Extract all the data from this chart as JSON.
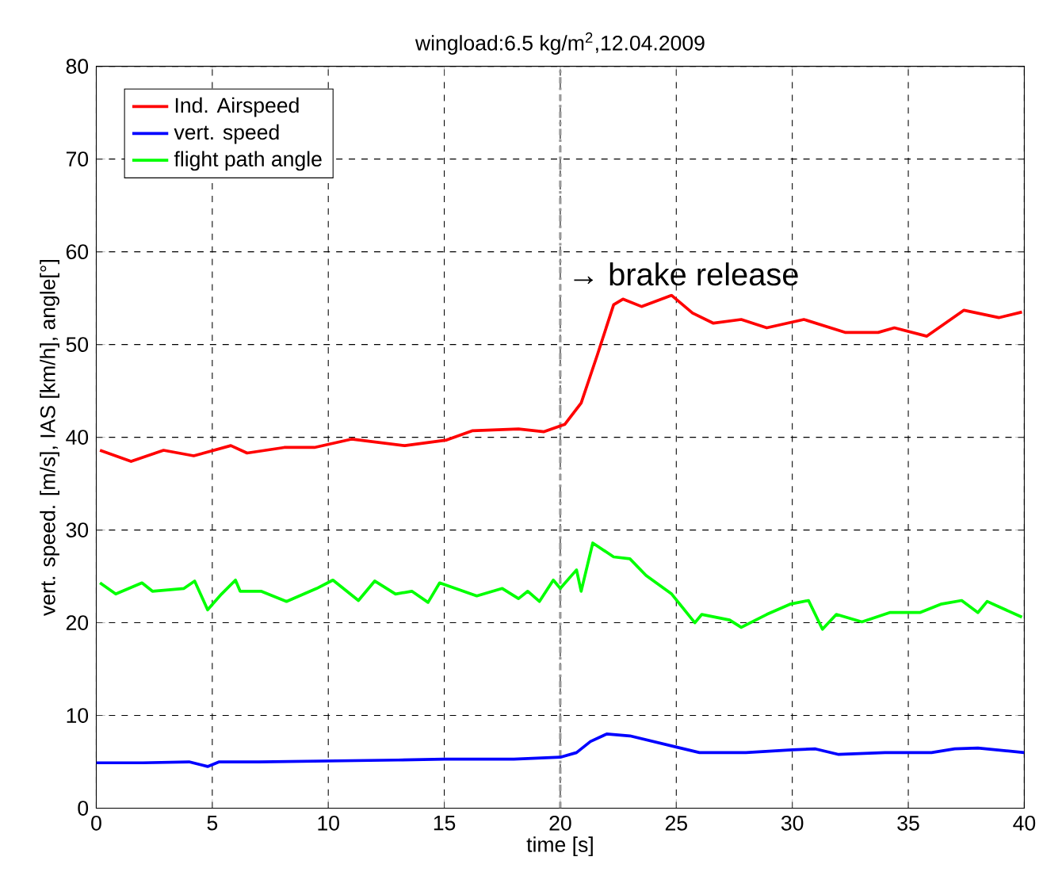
{
  "chart_data": {
    "type": "line",
    "title": "wingload:6.5 kg/m$^{2}$,12.04.2009",
    "xlabel": "time [s]",
    "ylabel": "vert. speed. [m/s], IAS [km/h], angle[°]",
    "xlim": [
      0,
      40
    ],
    "ylim": [
      0,
      80
    ],
    "xticks": [
      0,
      5,
      10,
      15,
      20,
      25,
      30,
      35,
      40
    ],
    "yticks": [
      0,
      10,
      20,
      30,
      40,
      50,
      60,
      70,
      80
    ],
    "grid": true,
    "legend": "top left",
    "marker": "none",
    "line_style": "solid",
    "ref_lines": [
      {
        "axis": "x",
        "value": 20,
        "label": "→ brake release",
        "color": "#999999",
        "line_style": "dashed"
      }
    ],
    "series": [
      {
        "name": "Ind. Airspeed",
        "color": "#ff0000",
        "x": [
          0.16,
          1.5,
          2.9,
          4.2,
          5.8,
          6.5,
          8.1,
          9.4,
          11.0,
          13.3,
          15.1,
          16.2,
          18.2,
          19.3,
          20.2,
          20.9,
          21.6,
          22.3,
          22.7,
          23.5,
          24.8,
          25.7,
          26.6,
          27.8,
          28.9,
          30.5,
          32.3,
          33.7,
          34.4,
          35.8,
          37.4,
          38.9,
          39.9
        ],
        "values": [
          38.6,
          37.4,
          38.6,
          38.0,
          39.1,
          38.3,
          38.9,
          38.9,
          39.8,
          39.1,
          39.7,
          40.7,
          40.9,
          40.6,
          41.4,
          43.7,
          48.9,
          54.3,
          54.9,
          54.1,
          55.3,
          53.4,
          52.3,
          52.7,
          51.8,
          52.7,
          51.3,
          51.3,
          51.8,
          50.9,
          53.7,
          52.9,
          53.5
        ]
      },
      {
        "name": "vert. speed",
        "color": "#0000ff",
        "x": [
          0,
          2,
          4,
          4.8,
          5.3,
          7,
          10,
          13,
          15,
          18,
          20,
          20.7,
          21.3,
          22,
          23,
          24,
          25,
          26,
          28,
          30,
          31,
          32,
          34,
          36,
          37,
          38,
          40
        ],
        "values": [
          4.9,
          4.9,
          5.0,
          4.5,
          5.0,
          5.0,
          5.1,
          5.2,
          5.3,
          5.3,
          5.5,
          6.0,
          7.2,
          8.0,
          7.8,
          7.2,
          6.6,
          6.0,
          6.0,
          6.3,
          6.4,
          5.8,
          6.0,
          6.0,
          6.4,
          6.5,
          6.0
        ]
      },
      {
        "name": "flight path angle",
        "color": "#00ff00",
        "x": [
          0.16,
          0.84,
          1.97,
          2.42,
          3.78,
          4.24,
          4.8,
          5.4,
          6.0,
          6.2,
          7.1,
          8.2,
          9.5,
          10.2,
          11.3,
          12.0,
          12.9,
          13.6,
          14.3,
          14.8,
          16.4,
          17.5,
          18.2,
          18.6,
          19.1,
          19.7,
          20.0,
          20.7,
          20.9,
          21.4,
          22.3,
          23.0,
          23.7,
          24.8,
          25.8,
          26.1,
          27.3,
          27.8,
          28.9,
          29.9,
          30.7,
          31.3,
          31.9,
          33.0,
          34.2,
          35.5,
          36.4,
          37.3,
          38.0,
          38.4,
          39.9
        ],
        "values": [
          24.3,
          23.1,
          24.3,
          23.4,
          23.7,
          24.5,
          21.4,
          23.1,
          24.6,
          23.4,
          23.4,
          22.3,
          23.7,
          24.6,
          22.4,
          24.5,
          23.1,
          23.4,
          22.2,
          24.3,
          22.9,
          23.7,
          22.6,
          23.4,
          22.3,
          24.6,
          23.7,
          25.7,
          23.4,
          28.6,
          27.1,
          26.9,
          25.1,
          23.1,
          20.0,
          20.9,
          20.3,
          19.5,
          20.9,
          22.0,
          22.4,
          19.3,
          20.9,
          20.1,
          21.1,
          21.1,
          22.0,
          22.4,
          21.1,
          22.3,
          20.6
        ]
      }
    ]
  }
}
